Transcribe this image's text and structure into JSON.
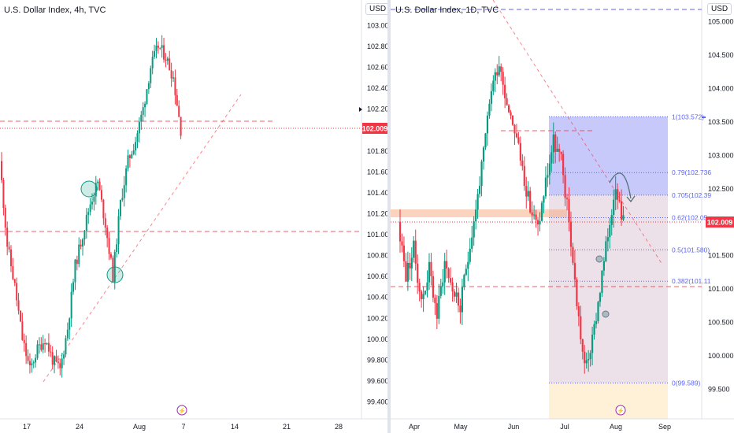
{
  "left": {
    "title": "U.S. Dollar Index, 4h, TVC",
    "currency": "USD",
    "y_ticks": [
      "103.000",
      "102.800",
      "102.600",
      "102.400",
      "102.200",
      "102.000",
      "101.800",
      "101.600",
      "101.400",
      "101.200",
      "101.000",
      "100.800",
      "100.600",
      "100.400",
      "100.200",
      "100.000",
      "99.800",
      "99.600",
      "99.400"
    ],
    "x_ticks": [
      "17",
      "24",
      "Aug",
      "7",
      "14",
      "21",
      "28"
    ],
    "last_price": "102.009",
    "colors": {
      "up": "#089981",
      "down": "#f23645",
      "price": "#f23645",
      "dashed": "#f23645"
    }
  },
  "right": {
    "title": "U.S. Dollar Index, 1D, TVC",
    "currency": "USD",
    "y_ticks": [
      "105.000",
      "104.500",
      "104.000",
      "103.500",
      "103.000",
      "102.500",
      "102.000",
      "101.500",
      "101.000",
      "100.500",
      "100.000",
      "99.500"
    ],
    "x_ticks": [
      "Apr",
      "May",
      "Jun",
      "Jul",
      "Aug",
      "Sep"
    ],
    "last_price": "102.009",
    "fib_levels": [
      {
        "label": "1(103.572)",
        "value": 103.572
      },
      {
        "label": "0.79(102.736",
        "value": 102.736
      },
      {
        "label": "0.705(102.39",
        "value": 102.399
      },
      {
        "label": "0.62(102.05",
        "value": 102.062
      },
      {
        "label": "0.5(101.580)",
        "value": 101.58
      },
      {
        "label": "0.382(101.11",
        "value": 101.111
      },
      {
        "label": "0(99.589)",
        "value": 99.589
      }
    ],
    "colors": {
      "fib_upper": "#5b64f0",
      "fib_lower": "#c79fb1",
      "fib_bottom": "#ffe6b3",
      "zone": "#f7a072"
    }
  },
  "chart_data": [
    {
      "type": "candlestick",
      "title": "U.S. Dollar Index, 4h, TVC",
      "ylim": [
        99.3,
        103.1
      ],
      "x_ticks": [
        "17",
        "24",
        "Aug",
        "7",
        "14",
        "21",
        "28"
      ],
      "approx_close_path": [
        101.7,
        100.9,
        100.5,
        100.0,
        99.7,
        99.9,
        100.0,
        99.8,
        99.7,
        100.1,
        100.7,
        101.0,
        101.3,
        101.5,
        101.1,
        100.6,
        101.3,
        101.7,
        101.9,
        102.2,
        102.6,
        102.8,
        102.7,
        102.5,
        102.0
      ],
      "horizontal_levels": [
        102.06,
        101.0
      ],
      "trendline": {
        "from": [
          99.7,
          "Jul 20"
        ],
        "to": [
          102.4,
          "Aug 10"
        ]
      },
      "last_price": 102.009
    },
    {
      "type": "candlestick",
      "title": "U.S. Dollar Index, 1D, TVC",
      "ylim": [
        99.3,
        105.2
      ],
      "x_ticks": [
        "Apr",
        "May",
        "Jun",
        "Jul",
        "Aug",
        "Sep"
      ],
      "approx_close_path": [
        102.0,
        101.2,
        101.6,
        100.8,
        101.3,
        100.6,
        101.4,
        101.0,
        100.7,
        101.5,
        102.2,
        103.0,
        104.0,
        104.4,
        103.8,
        103.4,
        102.8,
        102.2,
        101.9,
        102.6,
        103.2,
        102.9,
        102.0,
        100.8,
        99.8,
        100.2,
        101.0,
        101.8,
        102.6,
        102.0
      ],
      "horizontal_levels": [
        103.572,
        101.06,
        105.0
      ],
      "fibonacci": [
        103.572,
        102.736,
        102.399,
        102.062,
        101.58,
        101.111,
        99.589
      ],
      "last_price": 102.009
    }
  ]
}
